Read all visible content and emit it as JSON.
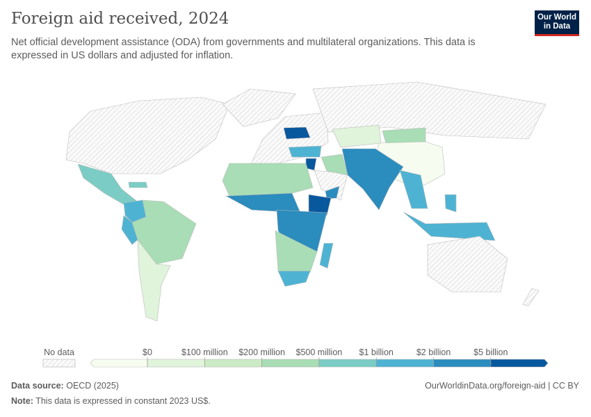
{
  "header": {
    "title": "Foreign aid received, 2024",
    "subtitle": "Net official development assistance (ODA) from governments and multilateral organizations. This data is expressed in US dollars and adjusted for inflation.",
    "logo": "Our World in Data"
  },
  "legend": {
    "no_data_label": "No data",
    "no_data_pattern": "hatched-gray",
    "thresholds": [
      "$0",
      "$100 million",
      "$200 million",
      "$500 million",
      "$1 billion",
      "$2 billion",
      "$5 billion"
    ],
    "bin_colors": [
      "#f7fcf0",
      "#e0f3db",
      "#ccebc5",
      "#a8ddb5",
      "#7bccc4",
      "#4eb3d3",
      "#2b8cbe",
      "#08589e"
    ]
  },
  "footer": {
    "source_label": "Data source:",
    "source": "OECD (2025)",
    "url": "OurWorldinData.org/foreign-aid | CC BY",
    "note_label": "Note:",
    "note": "This data is expressed in constant 2023 US$."
  }
}
